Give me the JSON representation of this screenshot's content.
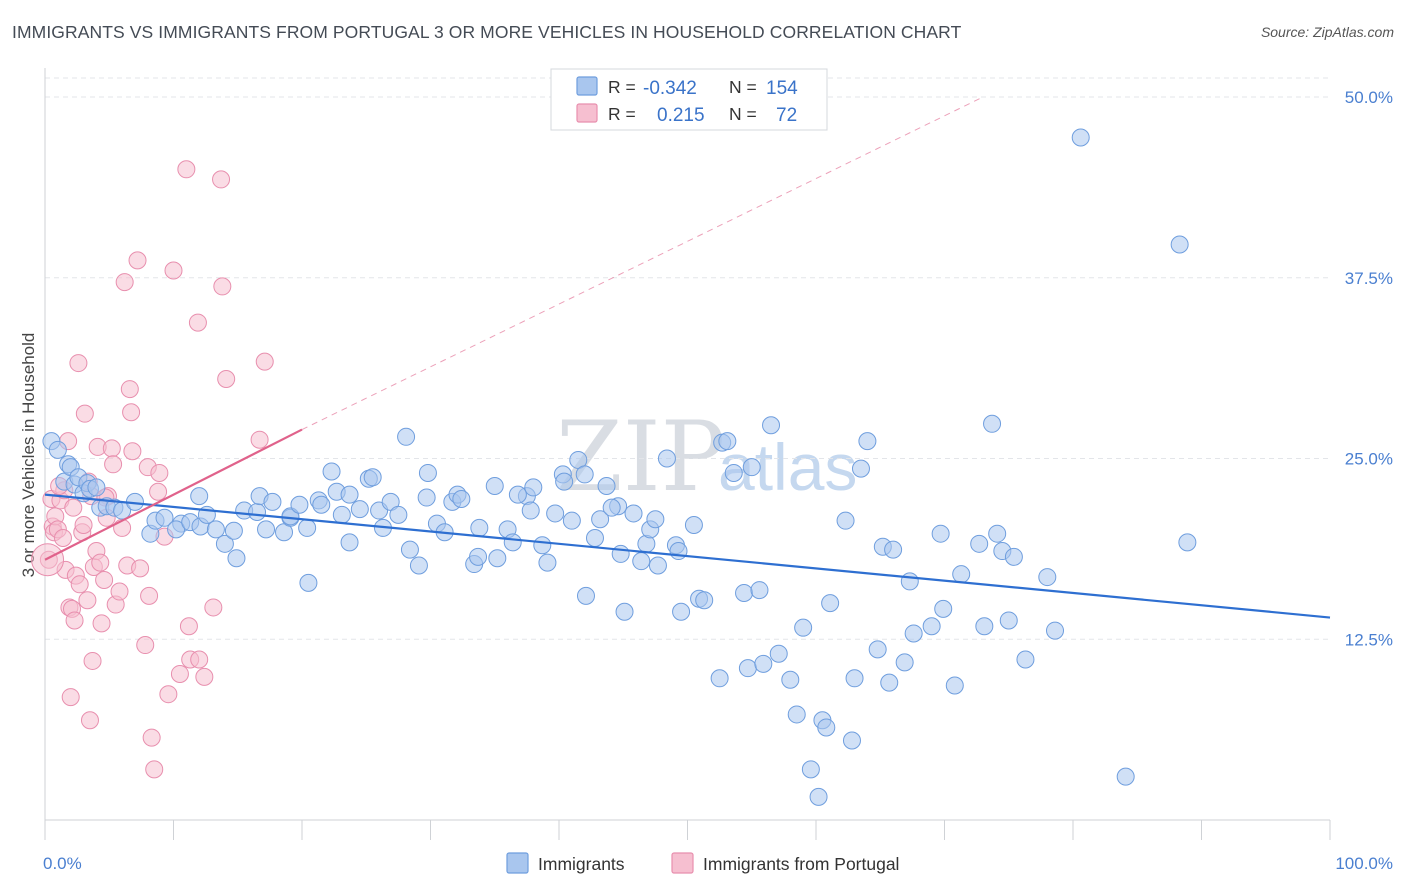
{
  "title": "IMMIGRANTS VS IMMIGRANTS FROM PORTUGAL 3 OR MORE VEHICLES IN HOUSEHOLD CORRELATION CHART",
  "source": "Source: ZipAtlas.com",
  "watermark": {
    "zip": "ZIP",
    "atlas": "atlas"
  },
  "legend_stats": [
    {
      "r_label": "R =",
      "r_value": "-0.342",
      "n_label": "N =",
      "n_value": "154"
    },
    {
      "r_label": "R =",
      "r_value": "0.215",
      "n_label": "N =",
      "n_value": "72"
    }
  ],
  "bottom_legend": [
    "Immigrants",
    "Immigrants from Portugal"
  ],
  "colors": {
    "blue_fill": "#a9c6ee",
    "blue_stroke": "#6f9ede",
    "blue_line": "#2e6fd1",
    "pink_fill": "#f6bfd0",
    "pink_stroke": "#e88fae",
    "pink_line": "#e0628b",
    "grid": "#e3e5e9",
    "tick_text": "#4a7fd0"
  },
  "chart_data": {
    "type": "scatter",
    "title": "IMMIGRANTS VS IMMIGRANTS FROM PORTUGAL 3 OR MORE VEHICLES IN HOUSEHOLD CORRELATION CHART",
    "xlabel": "",
    "ylabel": "3 or more Vehicles in Household",
    "xlim": [
      0,
      100
    ],
    "ylim": [
      0,
      50
    ],
    "x_tick_labels": [
      "0.0%",
      "100.0%"
    ],
    "y_ticks": [
      12.5,
      25.0,
      37.5,
      50.0
    ],
    "y_tick_labels": [
      "12.5%",
      "25.0%",
      "37.5%",
      "50.0%"
    ],
    "grid": true,
    "series": [
      {
        "name": "Immigrants",
        "r": -0.342,
        "n": 154,
        "trend": {
          "x0": 0,
          "y0": 22.5,
          "x1": 100,
          "y1": 14.0,
          "style": "solid"
        },
        "points": [
          [
            0.5,
            26.2
          ],
          [
            1.0,
            25.6
          ],
          [
            1.5,
            23.4
          ],
          [
            1.8,
            24.6
          ],
          [
            2.0,
            24.4
          ],
          [
            2.3,
            23.2
          ],
          [
            2.6,
            23.7
          ],
          [
            3.0,
            22.6
          ],
          [
            3.3,
            23.3
          ],
          [
            3.5,
            22.9
          ],
          [
            4.0,
            23.0
          ],
          [
            4.3,
            21.6
          ],
          [
            4.8,
            21.7
          ],
          [
            5.4,
            21.6
          ],
          [
            6.0,
            21.4
          ],
          [
            7.0,
            22.0
          ],
          [
            8.2,
            19.8
          ],
          [
            8.6,
            20.7
          ],
          [
            9.3,
            20.9
          ],
          [
            10.6,
            20.5
          ],
          [
            10.2,
            20.1
          ],
          [
            11.3,
            20.6
          ],
          [
            12.1,
            20.3
          ],
          [
            12.0,
            22.4
          ],
          [
            12.6,
            21.1
          ],
          [
            13.3,
            20.1
          ],
          [
            14.0,
            19.1
          ],
          [
            14.7,
            20.0
          ],
          [
            14.9,
            18.1
          ],
          [
            15.5,
            21.4
          ],
          [
            16.5,
            21.3
          ],
          [
            16.7,
            22.4
          ],
          [
            17.2,
            20.1
          ],
          [
            17.7,
            22.0
          ],
          [
            18.6,
            19.9
          ],
          [
            19.1,
            20.9
          ],
          [
            19.1,
            21.0
          ],
          [
            19.8,
            21.8
          ],
          [
            20.4,
            20.2
          ],
          [
            20.5,
            16.4
          ],
          [
            21.3,
            22.1
          ],
          [
            21.5,
            21.8
          ],
          [
            22.3,
            24.1
          ],
          [
            22.7,
            22.7
          ],
          [
            23.1,
            21.1
          ],
          [
            23.7,
            22.5
          ],
          [
            23.7,
            19.2
          ],
          [
            24.5,
            21.5
          ],
          [
            25.2,
            23.6
          ],
          [
            25.5,
            23.7
          ],
          [
            26.0,
            21.4
          ],
          [
            26.3,
            20.2
          ],
          [
            26.9,
            22.0
          ],
          [
            27.5,
            21.1
          ],
          [
            28.1,
            26.5
          ],
          [
            28.4,
            18.7
          ],
          [
            29.1,
            17.6
          ],
          [
            29.7,
            22.3
          ],
          [
            29.8,
            24.0
          ],
          [
            30.5,
            20.5
          ],
          [
            31.1,
            19.9
          ],
          [
            31.7,
            22.0
          ],
          [
            32.1,
            22.5
          ],
          [
            32.4,
            22.2
          ],
          [
            33.4,
            17.7
          ],
          [
            33.7,
            18.2
          ],
          [
            33.8,
            20.2
          ],
          [
            35.0,
            23.1
          ],
          [
            35.2,
            18.1
          ],
          [
            36.0,
            20.1
          ],
          [
            36.4,
            19.2
          ],
          [
            37.5,
            22.4
          ],
          [
            37.8,
            21.4
          ],
          [
            38.7,
            19.0
          ],
          [
            39.1,
            17.8
          ],
          [
            39.7,
            21.2
          ],
          [
            40.3,
            23.9
          ],
          [
            40.4,
            23.4
          ],
          [
            41.0,
            20.7
          ],
          [
            41.5,
            24.9
          ],
          [
            42.0,
            23.9
          ],
          [
            42.1,
            15.5
          ],
          [
            42.8,
            19.5
          ],
          [
            43.2,
            20.8
          ],
          [
            43.7,
            23.1
          ],
          [
            44.6,
            21.7
          ],
          [
            44.8,
            18.4
          ],
          [
            45.1,
            14.4
          ],
          [
            45.8,
            21.2
          ],
          [
            46.4,
            17.9
          ],
          [
            46.8,
            19.1
          ],
          [
            47.1,
            20.1
          ],
          [
            47.7,
            17.6
          ],
          [
            48.4,
            25.0
          ],
          [
            49.1,
            19.0
          ],
          [
            49.3,
            18.6
          ],
          [
            49.5,
            14.4
          ],
          [
            50.5,
            20.4
          ],
          [
            50.9,
            15.3
          ],
          [
            51.3,
            15.2
          ],
          [
            52.5,
            9.8
          ],
          [
            52.7,
            26.1
          ],
          [
            53.1,
            26.2
          ],
          [
            53.6,
            24.0
          ],
          [
            54.4,
            15.7
          ],
          [
            54.7,
            10.5
          ],
          [
            55.0,
            24.4
          ],
          [
            55.6,
            15.9
          ],
          [
            55.9,
            10.8
          ],
          [
            56.5,
            27.3
          ],
          [
            57.1,
            11.5
          ],
          [
            58.0,
            9.7
          ],
          [
            58.5,
            7.3
          ],
          [
            59.0,
            13.3
          ],
          [
            59.6,
            3.5
          ],
          [
            60.2,
            1.6
          ],
          [
            60.5,
            6.9
          ],
          [
            60.8,
            6.4
          ],
          [
            61.1,
            15.0
          ],
          [
            62.3,
            20.7
          ],
          [
            62.8,
            5.5
          ],
          [
            63.0,
            9.8
          ],
          [
            63.5,
            24.3
          ],
          [
            64.0,
            26.2
          ],
          [
            64.8,
            11.8
          ],
          [
            65.2,
            18.9
          ],
          [
            65.7,
            9.5
          ],
          [
            66.0,
            18.7
          ],
          [
            66.9,
            10.9
          ],
          [
            67.3,
            16.5
          ],
          [
            67.6,
            12.9
          ],
          [
            69.0,
            13.4
          ],
          [
            69.7,
            19.8
          ],
          [
            69.9,
            14.6
          ],
          [
            70.8,
            9.3
          ],
          [
            71.3,
            17.0
          ],
          [
            72.7,
            19.1
          ],
          [
            73.1,
            13.4
          ],
          [
            73.7,
            27.4
          ],
          [
            74.1,
            19.8
          ],
          [
            74.5,
            18.6
          ],
          [
            75.0,
            13.8
          ],
          [
            75.4,
            18.2
          ],
          [
            76.3,
            11.1
          ],
          [
            78.0,
            16.8
          ],
          [
            78.6,
            13.1
          ],
          [
            80.6,
            47.2
          ],
          [
            84.1,
            3.0
          ],
          [
            88.3,
            39.8
          ],
          [
            88.9,
            19.2
          ],
          [
            47.5,
            20.8
          ],
          [
            44.1,
            21.6
          ],
          [
            38.0,
            23.0
          ],
          [
            36.8,
            22.5
          ]
        ]
      },
      {
        "name": "Immigrants from Portugal",
        "r": 0.215,
        "n": 72,
        "trend": {
          "x0": 0,
          "y0": 18.0,
          "x1": 20,
          "y1": 27.0,
          "style": "solid",
          "extension_to": [
            73,
            50
          ],
          "extension_style": "dashed"
        },
        "points": [
          [
            0.3,
            18.0
          ],
          [
            0.5,
            22.2
          ],
          [
            0.6,
            20.3
          ],
          [
            0.7,
            19.9
          ],
          [
            0.8,
            21.0
          ],
          [
            1.0,
            20.1
          ],
          [
            1.2,
            22.1
          ],
          [
            1.4,
            19.5
          ],
          [
            1.5,
            22.8
          ],
          [
            1.6,
            17.3
          ],
          [
            1.8,
            26.2
          ],
          [
            1.9,
            14.7
          ],
          [
            2.0,
            8.5
          ],
          [
            2.1,
            14.6
          ],
          [
            2.3,
            13.8
          ],
          [
            2.4,
            16.9
          ],
          [
            2.6,
            31.6
          ],
          [
            2.7,
            16.3
          ],
          [
            2.9,
            19.9
          ],
          [
            3.0,
            20.4
          ],
          [
            3.1,
            28.1
          ],
          [
            3.3,
            15.2
          ],
          [
            3.5,
            6.9
          ],
          [
            3.6,
            22.4
          ],
          [
            3.7,
            11.0
          ],
          [
            3.8,
            17.5
          ],
          [
            4.0,
            18.6
          ],
          [
            4.1,
            25.8
          ],
          [
            4.3,
            17.8
          ],
          [
            4.4,
            13.6
          ],
          [
            4.6,
            16.6
          ],
          [
            4.8,
            20.9
          ],
          [
            4.9,
            22.4
          ],
          [
            5.2,
            25.7
          ],
          [
            5.3,
            24.6
          ],
          [
            5.5,
            14.9
          ],
          [
            5.8,
            15.8
          ],
          [
            6.0,
            20.2
          ],
          [
            6.2,
            37.2
          ],
          [
            6.4,
            17.6
          ],
          [
            6.6,
            29.8
          ],
          [
            6.7,
            28.2
          ],
          [
            6.8,
            25.5
          ],
          [
            7.2,
            38.7
          ],
          [
            7.4,
            17.4
          ],
          [
            7.8,
            12.1
          ],
          [
            8.0,
            24.4
          ],
          [
            8.1,
            15.5
          ],
          [
            8.3,
            5.7
          ],
          [
            8.5,
            3.5
          ],
          [
            8.8,
            22.7
          ],
          [
            8.9,
            24.0
          ],
          [
            9.3,
            19.6
          ],
          [
            9.6,
            8.7
          ],
          [
            10.0,
            38.0
          ],
          [
            10.5,
            10.1
          ],
          [
            11.0,
            45.0
          ],
          [
            11.2,
            13.4
          ],
          [
            11.3,
            11.1
          ],
          [
            11.9,
            34.4
          ],
          [
            12.0,
            11.1
          ],
          [
            12.4,
            9.9
          ],
          [
            13.1,
            14.7
          ],
          [
            13.7,
            44.3
          ],
          [
            13.8,
            36.9
          ],
          [
            14.1,
            30.5
          ],
          [
            16.7,
            26.3
          ],
          [
            17.1,
            31.7
          ],
          [
            2.2,
            21.6
          ],
          [
            1.1,
            23.1
          ],
          [
            3.4,
            23.4
          ],
          [
            4.7,
            22.3
          ]
        ]
      }
    ]
  }
}
